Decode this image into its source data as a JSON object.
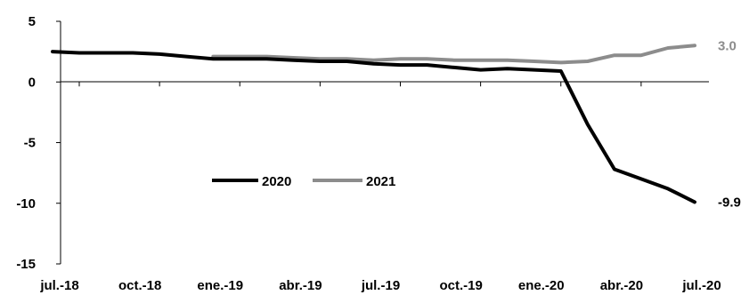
{
  "chart_data": {
    "type": "line",
    "categories": [
      "jul.-18",
      "ago.-18",
      "sep.-18",
      "oct.-18",
      "nov.-18",
      "dic.-18",
      "ene.-19",
      "feb.-19",
      "mar.-19",
      "abr.-19",
      "may.-19",
      "jun.-19",
      "jul.-19",
      "ago.-19",
      "sep.-19",
      "oct.-19",
      "nov.-19",
      "dic.-19",
      "ene.-20",
      "feb.-20",
      "mar.-20",
      "abr.-20",
      "may.-20",
      "jun.-20",
      "jul.-20"
    ],
    "x_tick_labels": [
      "jul.-18",
      "oct.-18",
      "ene.-19",
      "abr.-19",
      "jul.-19",
      "oct.-19",
      "ene.-20",
      "abr.-20",
      "jul.-20"
    ],
    "y_ticks": [
      5,
      0,
      -5,
      -10,
      -15
    ],
    "ylim": [
      -15,
      5
    ],
    "series": [
      {
        "name": "2020",
        "color": "#000000",
        "values": [
          2.5,
          2.4,
          2.4,
          2.4,
          2.3,
          2.1,
          1.9,
          1.9,
          1.9,
          1.8,
          1.7,
          1.7,
          1.5,
          1.4,
          1.4,
          1.2,
          1.0,
          1.1,
          1.0,
          0.9,
          -3.5,
          -7.2,
          -8.0,
          -8.8,
          -9.9
        ],
        "end_label": "-9.9"
      },
      {
        "name": "2021",
        "color": "#8c8c8c",
        "values": [
          null,
          null,
          null,
          null,
          null,
          null,
          2.1,
          2.1,
          2.1,
          2.0,
          1.9,
          1.9,
          1.8,
          1.9,
          1.9,
          1.8,
          1.8,
          1.8,
          1.7,
          1.6,
          1.7,
          2.2,
          2.2,
          2.8,
          3.0
        ],
        "end_label": "3.0"
      }
    ],
    "legend_position": "center-left",
    "grid": false
  }
}
